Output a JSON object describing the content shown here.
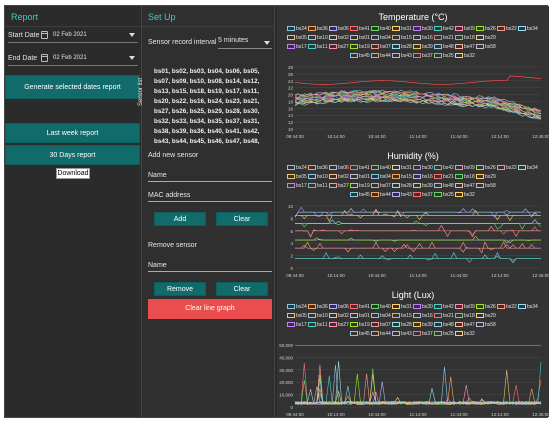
{
  "report": {
    "title": "Report",
    "start_date_label": "Start Date",
    "start_date_value": "02 Feb 2021",
    "end_date_label": "End Date",
    "end_date_value": "02 Feb 2021",
    "generate_label": "Generate selected dates report",
    "last_week_label": "Last week report",
    "thirty_days_label": "30 Days report",
    "download_label": "Download"
  },
  "setup": {
    "title": "Set Up",
    "interval_label": "Sensor record interval",
    "interval_value": "5 minutes",
    "sensor_list_label": "Sensor list",
    "sensor_list_lines": [
      "bs01, bs02, bs03, bs04, bs06, bs05,",
      "bs07, bs09, bs10, bs08, bs14, bs12,",
      "bs13, bs15, bs18, bs19, bs17, bs11,",
      "bs20, bs22, bs16, bs24, bs23, bs21,",
      "bs27, bs26, bs25, bs29, bs28, bs30,",
      "bs32, bs33, bs34, bs35, bs37, bs31,",
      "bs38, bs39, bs36, bs40, bs41, bs42,",
      "bs43, bs44, bs45, bs46, bs47, bs48,"
    ],
    "add_sensor_label": "Add new sensor",
    "name_placeholder": "Name",
    "mac_placeholder": "MAC address",
    "add_label": "Add",
    "clear_label": "Clear",
    "remove_sensor_label": "Remove sensor",
    "remove_name_placeholder": "Name",
    "remove_label": "Remove",
    "clear2_label": "Clear",
    "clear_graph_label": "Clear line graph"
  },
  "legend_colors": [
    "#7ec8e3",
    "#f5a25d",
    "#b0b0ff",
    "#ff6b6b",
    "#6bd36b",
    "#ffd166",
    "#c77dff",
    "#4ecdc4",
    "#ff8fab",
    "#a0e426",
    "#f4978e",
    "#90e0ef",
    "#e9c46a",
    "#8ecae6",
    "#ffb4a2",
    "#cdb4db"
  ],
  "charts": [
    {
      "title": "Temperature  (°C)",
      "legend_rows": [
        [
          "bs24",
          "bs36",
          "bs06",
          "bs41",
          "bs40",
          "bs31",
          "bs30",
          "bs42",
          "bs09",
          "bs26",
          "bs22",
          "bs34"
        ],
        [
          "bs05",
          "bs10",
          "bs02",
          "bs01",
          "bs04",
          "bs15",
          "bs16",
          "bs21",
          "bs18",
          "bs29"
        ],
        [
          "bs17",
          "bs11",
          "bs27",
          "bs19",
          "bs07",
          "bs28",
          "bs39",
          "bs48",
          "bs47",
          "bs58"
        ],
        [
          "bs45",
          "bs44",
          "bs43",
          "bs37",
          "bs25",
          "bs32"
        ]
      ],
      "x_labels": [
        "09:44:00",
        "10:14:00",
        "10:44:00",
        "11:14:00",
        "11:44:00",
        "12:14:00",
        "12:45:00"
      ],
      "y_labels": [
        "28",
        "26",
        "24",
        "22",
        "20",
        "18",
        "16",
        "14",
        "12",
        "10"
      ],
      "y_range": [
        10,
        28
      ]
    },
    {
      "title": "Humidity  (%)",
      "legend_rows": [
        [
          "bs24",
          "bs36",
          "bs06",
          "bs41",
          "bs40",
          "bs31",
          "bs30",
          "bs42",
          "bs09",
          "bs26",
          "bs22",
          "bs34"
        ],
        [
          "bs05",
          "bs10",
          "bs02",
          "bs01",
          "bs04",
          "bs15",
          "bs16",
          "bs21",
          "bs18",
          "bs29"
        ],
        [
          "bs17",
          "bs11",
          "bs27",
          "bs19",
          "bs07",
          "bs28",
          "bs39",
          "bs48",
          "bs47",
          "bs58"
        ],
        [
          "bs45",
          "bs44",
          "bs43",
          "bs37",
          "bs25",
          "bs32"
        ]
      ],
      "x_labels": [
        "09:44:00",
        "10:14:00",
        "10:44:00",
        "11:14:00",
        "11:44:00",
        "12:14:00",
        "12:45:00"
      ],
      "y_labels": [
        "10",
        "8",
        "6",
        "4",
        "2",
        "0"
      ],
      "y_range": [
        0,
        10
      ]
    },
    {
      "title": "Light  (Lux)",
      "legend_rows": [
        [
          "bs24",
          "bs36",
          "bs06",
          "bs41",
          "bs40",
          "bs31",
          "bs30",
          "bs42",
          "bs09",
          "bs26",
          "bs22",
          "bs34"
        ],
        [
          "bs05",
          "bs10",
          "bs02",
          "bs01",
          "bs04",
          "bs15",
          "bs16",
          "bs21",
          "bs18",
          "bs29"
        ],
        [
          "bs17",
          "bs11",
          "bs27",
          "bs19",
          "bs07",
          "bs28",
          "bs39",
          "bs48",
          "bs47",
          "bs58"
        ],
        [
          "bs45",
          "bs44",
          "bs43",
          "bs37",
          "bs25",
          "bs32"
        ]
      ],
      "x_labels": [
        "09:44:00",
        "10:14:00",
        "10:44:00",
        "11:14:00",
        "11:44:00",
        "12:14:00",
        "12:45:00"
      ],
      "y_labels": [
        "50,000",
        "40,000",
        "30,000",
        "20,000",
        "10,000",
        "0"
      ],
      "y_range": [
        0,
        50000
      ]
    }
  ]
}
